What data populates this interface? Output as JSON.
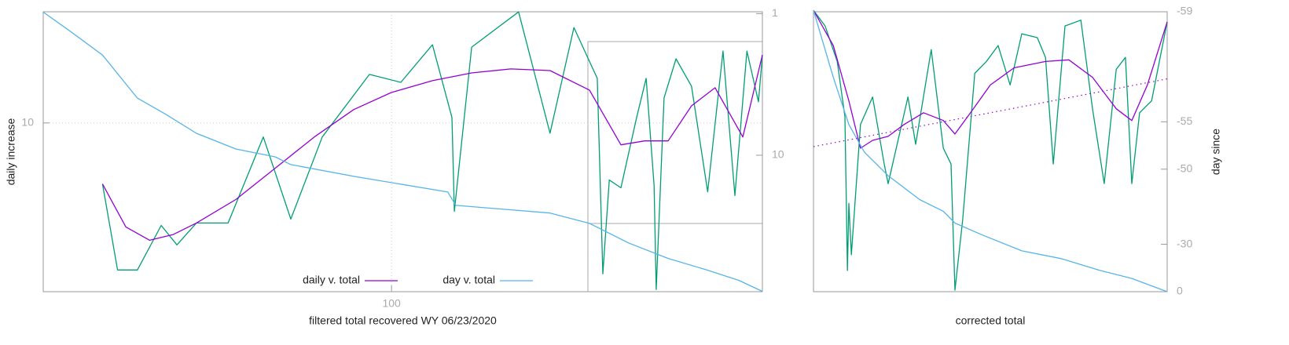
{
  "chart_data": [
    {
      "type": "line",
      "xlabel": "filtered total recovered WY 06/23/2020",
      "ylabel": "daily increase",
      "xscale": "log",
      "yscale": "log",
      "y2scale": "log",
      "xlim": [
        20,
        555
      ],
      "ylim": [
        0.04,
        380
      ],
      "y2lim": [
        92,
        0.97
      ],
      "xticks": [
        100
      ],
      "yticks": [
        10
      ],
      "y2ticks": [
        1,
        10
      ],
      "grid": true,
      "legend": "lower center",
      "series": [
        {
          "color": "#009e73",
          "x": [
            26.3,
            28.2,
            30.9,
            34.5,
            37.1,
            40.6,
            47.0,
            55.3,
            62.8,
            72.6,
            90.3,
            104.4,
            120.8,
            132.2,
            133.7,
            144.8,
            179.9,
            208,
            232.3,
            258.8,
            265.5,
            273.5,
            288.6,
            310.4,
            324.4,
            336.5,
            339.8,
            352.4,
            372.4,
            400,
            431,
            462.6,
            488.7,
            516.6,
            545,
            555
          ],
          "values": [
            1.36,
            0.0815,
            0.0815,
            0.35,
            0.185,
            0.379,
            0.379,
            6.31,
            0.43,
            6.31,
            48.9,
            37.8,
            129,
            11.96,
            0.555,
            119.6,
            378,
            7.17,
            227,
            43.0,
            0.0718,
            1.545,
            1.197,
            11.96,
            43.0,
            1.29,
            0.043,
            22.7,
            81.5,
            33.3,
            1.05,
            105,
            0.926,
            105,
            19.95,
            92.7
          ]
        },
        {
          "name": "daily v. total",
          "color": "#9400d3",
          "x": [
            26.3,
            29.3,
            32.7,
            36.4,
            40.6,
            48.7,
            58.4,
            70.0,
            84.0,
            100,
            120.8,
            144.8,
            173.5,
            208,
            249.6,
            288.6,
            322,
            359,
            400,
            446,
            507,
            555
          ],
          "values": [
            1.36,
            0.333,
            0.215,
            0.258,
            0.379,
            0.815,
            2.27,
            6.31,
            15.5,
            27.1,
            39.8,
            51.4,
            58.5,
            55.5,
            29.3,
            4.89,
            5.55,
            5.55,
            17.5,
            31.6,
            6.31,
            92.7
          ]
        },
        {
          "name": "day v. total",
          "color": "#56b4e9",
          "axis": "y2",
          "x": [
            20,
            22.7,
            26.3,
            30.9,
            35.1,
            40.6,
            48.7,
            58.4,
            62.8,
            84.0,
            129.7,
            134.6,
            208,
            249.6,
            299,
            359,
            431,
            498,
            555
          ],
          "values": [
            0.975,
            1.34,
            1.96,
            3.95,
            5.1,
            7.0,
            9.03,
            10.26,
            11.65,
            14.1,
            18.2,
            22.6,
            25.6,
            30.3,
            41.6,
            53.6,
            64.9,
            76.6,
            91.5
          ]
        }
      ]
    },
    {
      "type": "line",
      "xlabel": "corrected total",
      "y2label": "day since",
      "y2scale": "log-offset",
      "xlim": [
        0,
        100
      ],
      "y2lim": [
        0,
        -59
      ],
      "y2ticks": [
        -59,
        -55,
        -50,
        -30,
        0
      ],
      "series": [
        {
          "color": "#009e73",
          "axis": "y2",
          "x": [
            0,
            3.3,
            6.7,
            8.9,
            9.6,
            10,
            10.7,
            13.3,
            16.7,
            20,
            21.1,
            26.7,
            28.9,
            33.3,
            36.7,
            38.9,
            40,
            42.2,
            45.6,
            48.9,
            52.2,
            55.6,
            58.9,
            63.3,
            65.6,
            67.8,
            71.1,
            75.6,
            78.9,
            82.2,
            85.6,
            88.2,
            90,
            92.2,
            95.6,
            100
          ],
          "values": [
            -59.02,
            -58.77,
            -57.93,
            -55.36,
            -16.0,
            -43.5,
            -25.1,
            -54.8,
            -56.52,
            -50.73,
            -47.64,
            -56.52,
            -53.05,
            -58.26,
            -52.64,
            -50.73,
            -1.3,
            -39.2,
            -57.54,
            -57.93,
            -58.36,
            -57.08,
            -58.62,
            -58.54,
            -58.05,
            -50.73,
            -58.77,
            -58.87,
            -55.87,
            -47.64,
            -57.68,
            -58.05,
            -47.64,
            -55.62,
            -56.32,
            -58.84
          ]
        },
        {
          "color": "#9400d3",
          "axis": "y2",
          "x": [
            0,
            5.6,
            10,
            13.3,
            16.7,
            21.1,
            25.6,
            31.1,
            36.7,
            40,
            44.4,
            50,
            56.7,
            65.6,
            72.2,
            78.9,
            85.6,
            90,
            94.4,
            100
          ],
          "values": [
            -59.02,
            -58.36,
            -56.32,
            -52.64,
            -53.44,
            -53.81,
            -54.8,
            -55.62,
            -55.09,
            -54.02,
            -55.62,
            -57.08,
            -57.73,
            -57.93,
            -57.98,
            -57.39,
            -55.87,
            -55.09,
            -57.08,
            -58.84
          ]
        },
        {
          "color": "#56b4e9",
          "axis": "y2",
          "x": [
            0,
            5.6,
            10,
            14.4,
            21.1,
            30,
            36.7,
            40,
            47.8,
            58.9,
            70,
            81.1,
            90,
            100
          ],
          "values": [
            -59.02,
            -57.39,
            -54.8,
            -52.2,
            -49.0,
            -44.4,
            -41.5,
            -38.0,
            -33.8,
            -27.0,
            -23.0,
            -16.0,
            -10.6,
            0
          ]
        },
        {
          "color": "#9400d3",
          "axis": "y2",
          "dashed": true,
          "x": [
            0,
            100
          ],
          "values": [
            -52.81,
            -57.33
          ]
        }
      ]
    }
  ]
}
